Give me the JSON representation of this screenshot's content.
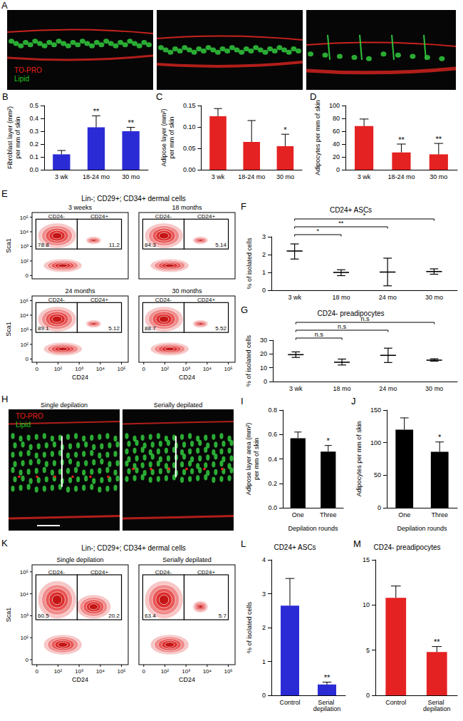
{
  "images": [
    {
      "panel": "A",
      "frames": [
        {
          "labels": [
            {
              "text": "TO-PRO",
              "color": "#e8201a"
            },
            {
              "text": "Lipid",
              "color": "#22c822"
            }
          ]
        },
        {
          "labels": []
        },
        {
          "labels": []
        }
      ]
    },
    {
      "panel": "H",
      "frames": [
        {
          "title": "Single depilation",
          "labels": [
            {
              "text": "TO-PRO",
              "color": "#e8201a"
            },
            {
              "text": "Lipid",
              "color": "#22c822"
            }
          ]
        },
        {
          "title": "Serially depilated",
          "labels": []
        }
      ]
    }
  ],
  "flow": [
    {
      "panel": "E",
      "title": "Lin-; CD29+; CD34+ dermal cells",
      "xlabel": "CD24",
      "ylabel": "Sca1",
      "ticks": [
        "0",
        "10²",
        "10³",
        "10⁴",
        "10⁵"
      ],
      "gates": [
        "CD24-",
        "CD24+"
      ],
      "plots": [
        {
          "title": "3 weeks",
          "percentages": [
            "78.8",
            "11.2"
          ]
        },
        {
          "title": "18 months",
          "percentages": [
            "84.3",
            "5.14"
          ]
        },
        {
          "title": "24 months",
          "percentages": [
            "89.1",
            "5.12"
          ]
        },
        {
          "title": "30 months",
          "percentages": [
            "88.7",
            "5.52"
          ]
        }
      ]
    },
    {
      "panel": "K",
      "title": "Lin-; CD29+; CD34+ dermal cells",
      "xlabel": "CD24",
      "ylabel": "Sca1",
      "ticks": [
        "0",
        "10²",
        "10³",
        "10⁴",
        "10⁵"
      ],
      "gates": [
        "CD24-",
        "CD24+"
      ],
      "plots": [
        {
          "title": "Single depilation",
          "percentages": [
            "60.5",
            "20.2"
          ]
        },
        {
          "title": "Serially depilated",
          "percentages": [
            "63.4",
            "5.7"
          ]
        }
      ]
    }
  ],
  "chart_data": [
    {
      "panel": "B",
      "type": "bar",
      "categories": [
        "3 wk",
        "18-24 mo",
        "30 mo"
      ],
      "values": [
        0.12,
        0.33,
        0.3
      ],
      "errors": [
        0.03,
        0.09,
        0.03
      ],
      "annotations": [
        null,
        "**",
        "**"
      ],
      "color": "#2b2bd6",
      "ylabel": "Fibroblast layer (mm²)\nper mm of skin",
      "ylim": [
        0,
        0.5
      ],
      "yticks": [
        {
          "value": 0,
          "label": "0.0"
        },
        0.1,
        0.2,
        0.3,
        0.4,
        0.5
      ]
    },
    {
      "panel": "C",
      "type": "bar",
      "categories": [
        "3 wk",
        "18-24 mo",
        "30 mo"
      ],
      "values": [
        0.125,
        0.065,
        0.055
      ],
      "errors": [
        0.018,
        0.05,
        0.028
      ],
      "annotations": [
        null,
        null,
        "*"
      ],
      "color": "#e52222",
      "ylabel": "Adipose layer (mm²)\nper mm of skin",
      "ylim": [
        0,
        0.15
      ],
      "yticks": [
        {
          "value": 0,
          "label": "0.00"
        },
        0.05,
        {
          "value": 0.1,
          "label": "0.10"
        },
        0.15
      ]
    },
    {
      "panel": "D",
      "type": "bar",
      "categories": [
        "3 wk",
        "18-24 mo",
        "30 mo"
      ],
      "values": [
        68,
        27,
        24
      ],
      "errors": [
        11,
        13,
        17
      ],
      "annotations": [
        null,
        "**",
        "**"
      ],
      "color": "#e52222",
      "ylabel": "Adipocytes per mm of skin",
      "ylim": [
        0,
        100
      ],
      "yticks": [
        0,
        20,
        40,
        60,
        80,
        100
      ]
    },
    {
      "panel": "F",
      "type": "errorbar",
      "title": "CD24+ ASCs",
      "categories": [
        "3 wk",
        "18 mo",
        "24 mo",
        "30 mo"
      ],
      "values": [
        2.2,
        1.0,
        1.02,
        1.05
      ],
      "low": [
        1.75,
        0.82,
        0.25,
        0.9
      ],
      "high": [
        2.6,
        1.15,
        1.8,
        1.2
      ],
      "color": "#000000",
      "ylabel": "% of isolated cells",
      "ylim": [
        0,
        3
      ],
      "yticks": [
        0,
        1,
        2,
        3
      ],
      "comparisons": [
        {
          "from": "3 wk",
          "to": "18 mo",
          "label": "*"
        },
        {
          "from": "3 wk",
          "to": "24 mo",
          "label": "**"
        },
        {
          "from": "3 wk",
          "to": "30 mo",
          "label": "*"
        }
      ]
    },
    {
      "panel": "G",
      "type": "errorbar",
      "title": "CD24- preadipocytes",
      "categories": [
        "3 wk",
        "18 mo",
        "24 mo",
        "30 mo"
      ],
      "values": [
        19.5,
        14,
        19,
        15.5
      ],
      "low": [
        17.5,
        12,
        13.8,
        14.8
      ],
      "high": [
        21.5,
        16.3,
        24.2,
        16.5
      ],
      "color": "#000000",
      "ylabel": "% of isolated cells",
      "ylim": [
        0,
        30
      ],
      "yticks": [
        0,
        10,
        20,
        30
      ],
      "comparisons": [
        {
          "from": "3 wk",
          "to": "18 mo",
          "label": "n.s"
        },
        {
          "from": "3 wk",
          "to": "24 mo",
          "label": "n.s"
        },
        {
          "from": "3 wk",
          "to": "30 mo",
          "label": "n.s"
        }
      ]
    },
    {
      "panel": "I",
      "type": "bar",
      "categories": [
        "One",
        "Three"
      ],
      "values": [
        0.57,
        0.46
      ],
      "errors": [
        0.05,
        0.05
      ],
      "annotations": [
        null,
        "*"
      ],
      "color": "#000000",
      "ylabel": "Adipose layer area (mm²)\nper mm of skin",
      "xlabel": "Depilation rounds",
      "ylim": [
        0,
        0.8
      ],
      "yticks": [
        {
          "value": 0,
          "label": "0.0"
        },
        0.2,
        0.4,
        0.6,
        0.8
      ]
    },
    {
      "panel": "J",
      "type": "bar",
      "categories": [
        "One",
        "Three"
      ],
      "values": [
        120,
        86
      ],
      "errors": [
        18,
        15
      ],
      "annotations": [
        null,
        "*"
      ],
      "color": "#000000",
      "ylabel": "Adipocytes per mm of skin",
      "xlabel": "Depilation rounds",
      "ylim": [
        0,
        150
      ],
      "yticks": [
        0,
        50,
        100,
        150
      ]
    },
    {
      "panel": "L",
      "type": "bar",
      "title": "CD24+ ASCs",
      "categories": [
        "Control",
        "Serial depilation"
      ],
      "values": [
        2.65,
        0.32
      ],
      "errors": [
        0.8,
        0.07
      ],
      "annotations": [
        null,
        "**"
      ],
      "color": "#2b2bd6",
      "ylabel": "% of isolated cells",
      "ylim": [
        0,
        4
      ],
      "yticks": [
        0,
        1,
        2,
        3,
        4
      ]
    },
    {
      "panel": "M",
      "type": "bar",
      "title": "CD24- preadipocytes",
      "categories": [
        "Control",
        "Serial depilation"
      ],
      "values": [
        10.8,
        4.8
      ],
      "errors": [
        1.3,
        0.6
      ],
      "annotations": [
        null,
        "**"
      ],
      "color": "#e52222",
      "ylim": [
        0,
        15
      ],
      "yticks": [
        0,
        5,
        10,
        15
      ]
    }
  ]
}
